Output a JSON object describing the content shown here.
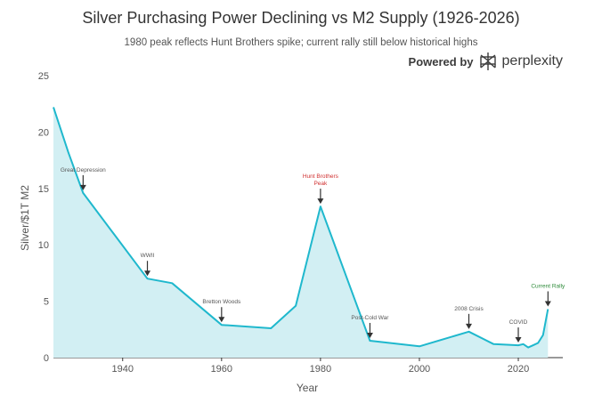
{
  "chart_data": {
    "type": "area",
    "title": "Silver Purchasing Power Declining vs M2 Supply (1926-2026)",
    "subtitle": "1980 peak reflects Hunt Brothers spike; current rally still below historical highs",
    "xlabel": "Year",
    "ylabel": "Silver/$1T M2",
    "xlim": [
      1926,
      2029
    ],
    "ylim": [
      0,
      25
    ],
    "x_ticks": [
      1940,
      1960,
      1980,
      2000,
      2020
    ],
    "y_ticks": [
      0,
      5,
      10,
      15,
      20,
      25
    ],
    "grid": false,
    "series": [
      {
        "x": [
          1926,
          1929,
          1932,
          1945,
          1950,
          1960,
          1970,
          1975,
          1980,
          1990,
          2000,
          2010,
          2015,
          2020,
          2021,
          2022,
          2023,
          2024,
          2025,
          2026
        ],
        "y": [
          22.2,
          18.2,
          14.6,
          7.0,
          6.6,
          2.9,
          2.6,
          4.6,
          13.4,
          1.5,
          1.0,
          2.3,
          1.2,
          1.1,
          1.2,
          0.9,
          1.1,
          1.3,
          2.0,
          4.3
        ],
        "color": "#1FB8CD",
        "fill": "#d2eff3"
      }
    ],
    "annotations": [
      {
        "text": "Great Depression",
        "x": 1932,
        "y": 14.6,
        "color": "#555555"
      },
      {
        "text": "WWII",
        "x": 1945,
        "y": 7.0,
        "color": "#555555"
      },
      {
        "text": "Bretton Woods",
        "x": 1960,
        "y": 2.9,
        "color": "#555555"
      },
      {
        "text": "Hunt Brothers Peak",
        "x": 1980,
        "y": 13.4,
        "color": "#d03030"
      },
      {
        "text": "Post-Cold War",
        "x": 1990,
        "y": 1.5,
        "color": "#555555"
      },
      {
        "text": "2008 Crisis",
        "x": 2010,
        "y": 2.3,
        "color": "#555555"
      },
      {
        "text": "COVID",
        "x": 2020,
        "y": 1.1,
        "color": "#555555"
      },
      {
        "text": "Current Rally",
        "x": 2026,
        "y": 4.3,
        "color": "#2e8b3a"
      }
    ]
  },
  "brand": {
    "powered_by": "Powered by",
    "name": "perplexity",
    "icon": "perplexity-logo-icon"
  }
}
